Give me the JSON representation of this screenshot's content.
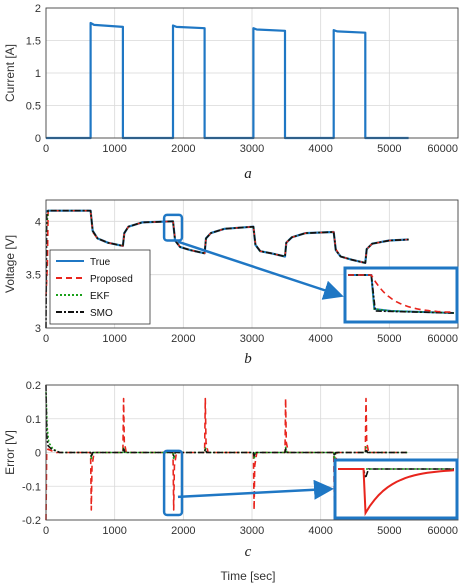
{
  "colors": {
    "true": "#1f77c4",
    "proposed": "#e8251d",
    "ekf": "#1aa01a",
    "smo": "#111111",
    "grid": "#d9d9d9",
    "highlight": "#1f77c4"
  },
  "chart_data": [
    {
      "type": "line",
      "panel_label": "a",
      "xlabel": "",
      "ylabel": "Current [A]",
      "xlim": [
        0,
        6000
      ],
      "ylim": [
        0,
        2
      ],
      "x_ticks": [
        "0",
        "1000",
        "2000",
        "3000",
        "4000",
        "5000",
        "6000"
      ],
      "y_ticks": [
        "0",
        "0.5",
        "1",
        "1.5",
        "2"
      ],
      "x_tick_suffix": "0",
      "grid": true,
      "series": [
        {
          "name": "",
          "color": "#1f77c4",
          "x": [
            0,
            650,
            650,
            700,
            1120,
            1120,
            1850,
            1850,
            1900,
            2310,
            2310,
            3020,
            3020,
            3070,
            3480,
            3480,
            4190,
            4190,
            4240,
            4650,
            4650,
            5280
          ],
          "y": [
            0,
            0,
            1.77,
            1.74,
            1.71,
            0,
            0,
            1.73,
            1.71,
            1.69,
            0,
            0,
            1.69,
            1.67,
            1.65,
            0,
            0,
            1.66,
            1.64,
            1.62,
            0,
            0
          ]
        }
      ]
    },
    {
      "type": "line",
      "panel_label": "b",
      "xlabel": "",
      "ylabel": "Voltage [V]",
      "xlim": [
        0,
        6000
      ],
      "ylim": [
        3,
        4.2
      ],
      "x_ticks": [
        "0",
        "1000",
        "2000",
        "3000",
        "4000",
        "5000",
        "6000"
      ],
      "y_ticks": [
        "3",
        "3.5",
        "4"
      ],
      "x_tick_suffix": "0",
      "grid": true,
      "legend": {
        "position": "bottom-left",
        "entries": [
          "True",
          "Proposed",
          "EKF",
          "SMO"
        ]
      },
      "series": [
        {
          "name": "True",
          "color": "#1f77c4",
          "x": [
            0,
            30,
            650,
            680,
            750,
            900,
            1120,
            1140,
            1200,
            1400,
            1850,
            1880,
            1950,
            2100,
            2310,
            2330,
            2400,
            2600,
            3020,
            3050,
            3120,
            3280,
            3480,
            3500,
            3580,
            3780,
            4190,
            4220,
            4290,
            4450,
            4650,
            4670,
            4750,
            5000,
            5280
          ],
          "y": [
            4.09,
            4.1,
            4.1,
            3.91,
            3.84,
            3.8,
            3.77,
            3.89,
            3.95,
            3.99,
            4.0,
            3.82,
            3.76,
            3.73,
            3.7,
            3.84,
            3.89,
            3.93,
            3.95,
            3.78,
            3.72,
            3.7,
            3.67,
            3.8,
            3.85,
            3.89,
            3.9,
            3.73,
            3.67,
            3.64,
            3.61,
            3.74,
            3.79,
            3.82,
            3.83
          ]
        },
        {
          "name": "Proposed",
          "color": "#e8251d",
          "x": [
            0,
            20,
            30,
            650,
            680,
            750,
            900,
            1120,
            1140,
            1200,
            1400,
            1850,
            1880,
            1950,
            2100,
            2310,
            2330,
            2400,
            2600,
            3020,
            3050,
            3120,
            3280,
            3480,
            3500,
            3580,
            3780,
            4190,
            4220,
            4290,
            4450,
            4650,
            4670,
            4750,
            5000,
            5280
          ],
          "y": [
            3.3,
            3.6,
            4.1,
            4.1,
            3.9,
            3.84,
            3.8,
            3.77,
            3.89,
            3.95,
            3.99,
            4.0,
            3.83,
            3.76,
            3.73,
            3.7,
            3.84,
            3.89,
            3.93,
            3.95,
            3.79,
            3.72,
            3.7,
            3.67,
            3.8,
            3.85,
            3.89,
            3.9,
            3.74,
            3.67,
            3.64,
            3.61,
            3.74,
            3.79,
            3.82,
            3.83
          ]
        },
        {
          "name": "EKF",
          "color": "#1aa01a",
          "x": [
            0,
            25,
            30,
            650,
            680,
            750,
            900,
            1120,
            1140,
            1200,
            1400,
            1850,
            1880,
            1950,
            2100,
            2310,
            2330,
            2400,
            2600,
            3020,
            3050,
            3120,
            3280,
            3480,
            3500,
            3580,
            3780,
            4190,
            4220,
            4290,
            4450,
            4650,
            4670,
            4750,
            5000,
            5280
          ],
          "y": [
            3.9,
            4.05,
            4.1,
            4.1,
            3.91,
            3.84,
            3.8,
            3.77,
            3.89,
            3.95,
            3.99,
            4.0,
            3.82,
            3.76,
            3.73,
            3.7,
            3.84,
            3.89,
            3.93,
            3.95,
            3.78,
            3.72,
            3.7,
            3.67,
            3.8,
            3.85,
            3.89,
            3.9,
            3.73,
            3.67,
            3.64,
            3.61,
            3.74,
            3.79,
            3.82,
            3.83
          ]
        },
        {
          "name": "SMO",
          "color": "#111111",
          "x": [
            0,
            10,
            30,
            650,
            680,
            750,
            900,
            1120,
            1140,
            1200,
            1400,
            1850,
            1880,
            1950,
            2100,
            2310,
            2330,
            2400,
            2600,
            3020,
            3050,
            3120,
            3280,
            3480,
            3500,
            3580,
            3780,
            4190,
            4220,
            4290,
            4450,
            4650,
            4670,
            4750,
            5000,
            5280
          ],
          "y": [
            3.0,
            4.05,
            4.1,
            4.1,
            3.91,
            3.84,
            3.8,
            3.77,
            3.89,
            3.95,
            3.99,
            4.0,
            3.82,
            3.76,
            3.73,
            3.7,
            3.84,
            3.89,
            3.93,
            3.95,
            3.78,
            3.72,
            3.7,
            3.67,
            3.8,
            3.85,
            3.89,
            3.9,
            3.73,
            3.67,
            3.64,
            3.61,
            3.74,
            3.79,
            3.82,
            3.83
          ]
        }
      ],
      "zoom_region": {
        "x": [
          1720,
          1980
        ],
        "y": [
          3.82,
          4.06
        ]
      }
    },
    {
      "type": "line",
      "panel_label": "c",
      "xlabel": "Time [sec]",
      "ylabel": "Error [V]",
      "xlim": [
        0,
        6000
      ],
      "ylim": [
        -0.2,
        0.2
      ],
      "x_ticks": [
        "0",
        "1000",
        "2000",
        "3000",
        "4000",
        "5000",
        "6000"
      ],
      "y_ticks": [
        "-0.2",
        "-0.1",
        "0",
        "0.1",
        "0.2"
      ],
      "x_tick_suffix": "0",
      "grid": true,
      "series": [
        {
          "name": "Proposed",
          "color": "#e8251d",
          "x": [
            0,
            10,
            30,
            80,
            150,
            650,
            660,
            670,
            700,
            1120,
            1130,
            1140,
            1170,
            1850,
            1860,
            1870,
            1900,
            2310,
            2320,
            2330,
            2360,
            3020,
            3030,
            3040,
            3070,
            3480,
            3490,
            3500,
            3530,
            4190,
            4200,
            4210,
            4240,
            4650,
            4660,
            4670,
            4700,
            5280
          ],
          "y": [
            -0.2,
            0.0,
            0.01,
            0.005,
            0.0,
            0.0,
            -0.17,
            -0.04,
            0.0,
            0.0,
            0.16,
            0.03,
            0.0,
            0.0,
            -0.17,
            -0.04,
            0.0,
            0.0,
            0.16,
            0.03,
            0.0,
            0.0,
            -0.17,
            -0.04,
            0.0,
            0.0,
            0.16,
            0.03,
            0.0,
            0.0,
            -0.17,
            -0.04,
            0.0,
            0.0,
            0.16,
            0.03,
            0.0,
            0.0
          ]
        },
        {
          "name": "EKF",
          "color": "#1aa01a",
          "x": [
            0,
            15,
            40,
            100,
            200,
            650,
            660,
            680,
            1120,
            1130,
            1150,
            1850,
            1860,
            1880,
            2310,
            2320,
            2340,
            3020,
            3030,
            3050,
            3480,
            3490,
            3510,
            4190,
            4200,
            4220,
            4650,
            4660,
            4680,
            5280
          ],
          "y": [
            0.18,
            0.08,
            0.03,
            0.01,
            0.0,
            0.0,
            -0.02,
            0.0,
            0.0,
            0.015,
            0.0,
            0.0,
            -0.02,
            0.0,
            0.0,
            0.015,
            0.0,
            0.0,
            -0.02,
            0.0,
            0.0,
            0.015,
            0.0,
            0.0,
            -0.02,
            0.0,
            0.0,
            0.015,
            0.0,
            0.0
          ]
        },
        {
          "name": "SMO",
          "color": "#111111",
          "x": [
            0,
            10,
            30,
            80,
            200,
            650,
            660,
            680,
            1120,
            1130,
            1150,
            1850,
            1860,
            1880,
            2310,
            2320,
            2340,
            3020,
            3030,
            3050,
            3480,
            3490,
            3510,
            4190,
            4200,
            4220,
            4650,
            4660,
            4680,
            5280
          ],
          "y": [
            0.2,
            0.05,
            0.02,
            0.01,
            0.0,
            0.0,
            -0.01,
            0.0,
            0.0,
            0.01,
            0.0,
            0.0,
            -0.01,
            0.0,
            0.0,
            0.01,
            0.0,
            0.0,
            -0.01,
            0.0,
            0.0,
            0.01,
            0.0,
            0.0,
            -0.01,
            0.0,
            0.0,
            0.01,
            0.0,
            0.0
          ]
        }
      ],
      "zoom_region": {
        "x": [
          1720,
          1980
        ],
        "y": [
          -0.185,
          0.005
        ]
      }
    }
  ]
}
